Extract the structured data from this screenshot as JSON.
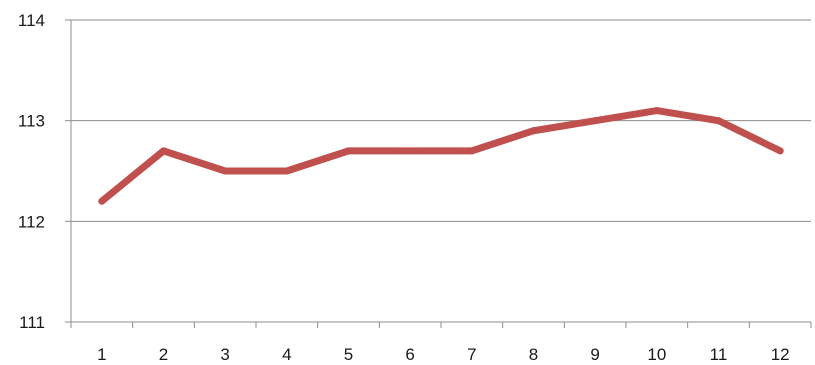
{
  "chart_data": {
    "type": "line",
    "title": "",
    "xlabel": "",
    "ylabel": "",
    "categories": [
      "1",
      "2",
      "3",
      "4",
      "5",
      "6",
      "7",
      "8",
      "9",
      "10",
      "11",
      "12"
    ],
    "series": [
      {
        "values": [
          112.2,
          112.7,
          112.5,
          112.5,
          112.7,
          112.7,
          112.7,
          112.9,
          113.0,
          113.1,
          113.0,
          112.7
        ]
      }
    ],
    "ylim": [
      111,
      114
    ],
    "yticks": [
      "111",
      "112",
      "113",
      "114"
    ],
    "grid": "horizontal",
    "legend": "none",
    "colors": {
      "line": "#c0504d",
      "grid": "#8c8c8c",
      "axis": "#8c8c8c"
    }
  }
}
